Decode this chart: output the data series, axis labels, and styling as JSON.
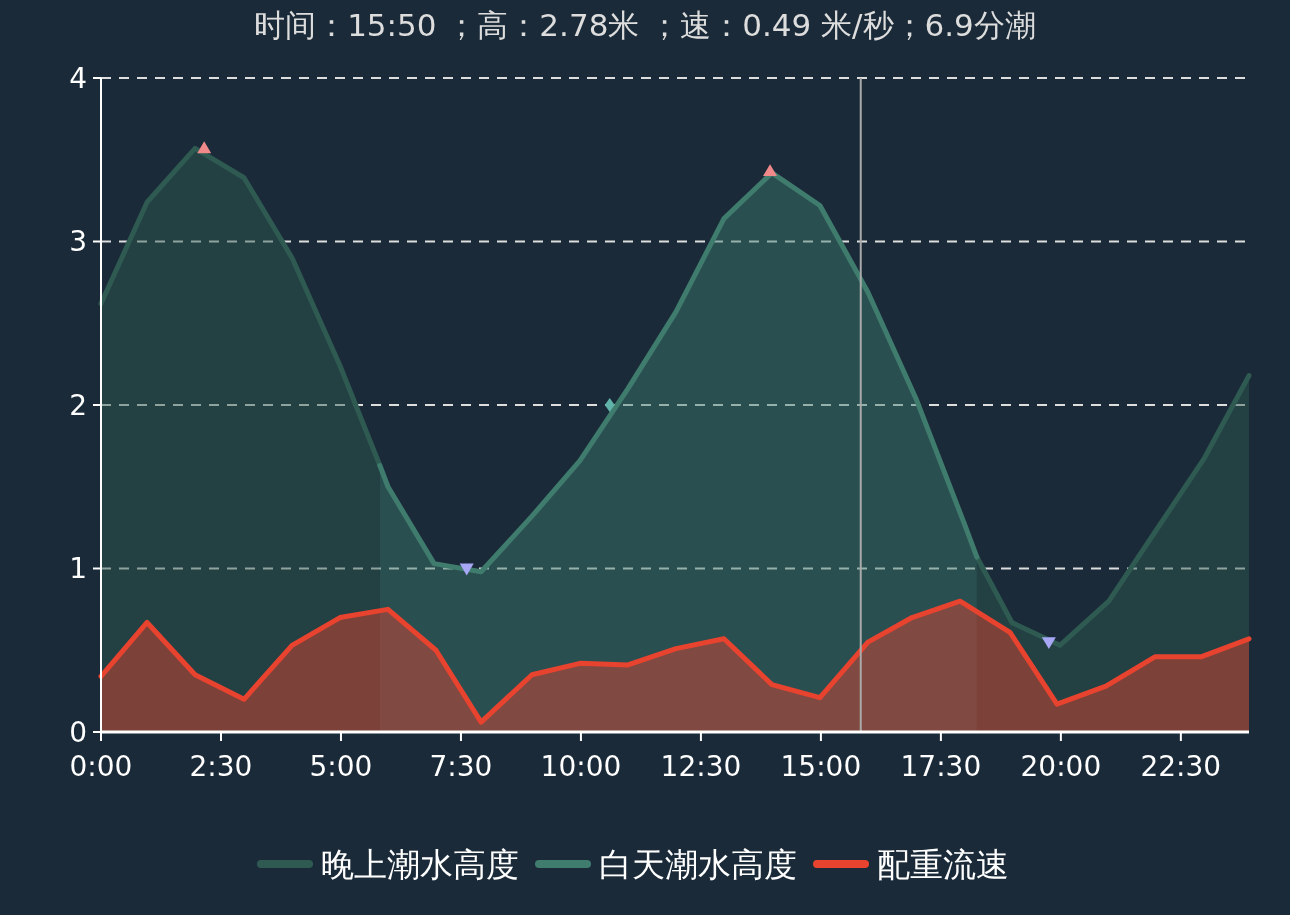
{
  "chart_data": {
    "type": "area",
    "title": "时间：15:50 ；高：2.78米 ；速：0.49 米/秒；6.9分潮",
    "xlim": [
      0,
      23.92
    ],
    "ylim": [
      0,
      4
    ],
    "xticks": [
      {
        "value": 0,
        "label": "0:00"
      },
      {
        "value": 2.5,
        "label": "2:30"
      },
      {
        "value": 5,
        "label": "5:00"
      },
      {
        "value": 7.5,
        "label": "7:30"
      },
      {
        "value": 10,
        "label": "10:00"
      },
      {
        "value": 12.5,
        "label": "12:30"
      },
      {
        "value": 15,
        "label": "15:00"
      },
      {
        "value": 17.5,
        "label": "17:30"
      },
      {
        "value": 20,
        "label": "20:00"
      },
      {
        "value": 22.5,
        "label": "22:30"
      }
    ],
    "yticks": [
      0,
      1,
      2,
      3,
      4
    ],
    "grid": "y",
    "legend": "bottom",
    "line_style": "solid",
    "marker": "none",
    "ref_lines": [
      {
        "axis": "x",
        "value": 15.83,
        "color": "#aaaaaa"
      }
    ],
    "series": [
      {
        "name": "晚上潮水高度",
        "color": "#2e5a52",
        "x": [
          0,
          0.96,
          1.96,
          2.98,
          3.98,
          4.98,
          5.81,
          12,
          18.25,
          18.98,
          19.98,
          21,
          22,
          22.98,
          23.92
        ],
        "values": [
          2.62,
          3.24,
          3.57,
          3.39,
          2.9,
          2.24,
          1.63,
          null,
          1.07,
          0.67,
          0.53,
          0.8,
          1.24,
          1.67,
          2.18
        ]
      },
      {
        "name": "白天潮水高度",
        "color": "#3f7c6e",
        "x": [
          5.81,
          5.98,
          6.94,
          7.92,
          8.98,
          9.98,
          10.98,
          11.98,
          12.98,
          13.98,
          14.98,
          15.98,
          16.98,
          17.98,
          18.25
        ],
        "values": [
          1.63,
          1.5,
          1.03,
          0.98,
          1.32,
          1.66,
          2.1,
          2.57,
          3.14,
          3.42,
          3.22,
          2.69,
          2.04,
          1.28,
          1.07
        ]
      },
      {
        "name": "配重流速",
        "color": "#e8432f",
        "x": [
          0,
          0.96,
          1.96,
          2.98,
          3.98,
          4.98,
          5.98,
          6.98,
          7.92,
          8.98,
          9.98,
          10.98,
          11.98,
          12.98,
          13.98,
          14.98,
          15.98,
          16.9,
          17.9,
          18.94,
          19.92,
          20.94,
          21.96,
          22.92,
          23.92
        ],
        "values": [
          0.34,
          0.67,
          0.35,
          0.2,
          0.53,
          0.7,
          0.75,
          0.5,
          0.06,
          0.35,
          0.42,
          0.41,
          0.51,
          0.57,
          0.29,
          0.21,
          0.55,
          0.7,
          0.8,
          0.61,
          0.17,
          0.28,
          0.46,
          0.46,
          0.57
        ]
      },
      {
        "type": "scatter",
        "marker": "triangle",
        "color": "#f08a8a",
        "x": [
          2.15,
          13.94
        ],
        "values": [
          3.57,
          3.43
        ]
      },
      {
        "type": "scatter",
        "marker": "triangle-down",
        "color": "#a7a7f5",
        "x": [
          7.62,
          19.75
        ],
        "values": [
          1.0,
          0.55
        ]
      },
      {
        "type": "scatter",
        "marker": "diamond",
        "color": "#5fb3a8",
        "x": [
          10.6
        ],
        "values": [
          2.0
        ]
      }
    ]
  }
}
